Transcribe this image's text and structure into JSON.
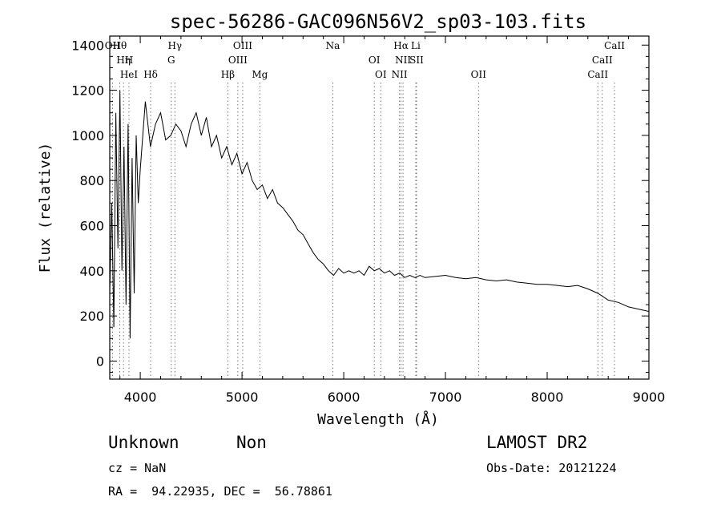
{
  "chart_data": {
    "type": "line",
    "title": "spec-56286-GAC096N56V2_sp03-103.fits",
    "xlabel": "Wavelength (Å)",
    "ylabel": "Flux (relative)",
    "xlim": [
      3700,
      9000
    ],
    "ylim": [
      -80,
      1440
    ],
    "xticks": [
      4000,
      5000,
      6000,
      7000,
      8000,
      9000
    ],
    "yticks": [
      0,
      200,
      400,
      600,
      800,
      1000,
      1200,
      1400
    ],
    "grid": false,
    "legend": "none",
    "series": [
      {
        "x": [
          3700,
          3720,
          3740,
          3760,
          3780,
          3800,
          3820,
          3840,
          3860,
          3880,
          3900,
          3920,
          3940,
          3960,
          3980,
          4000,
          4050,
          4100,
          4150,
          4200,
          4250,
          4300,
          4350,
          4400,
          4450,
          4500,
          4550,
          4600,
          4650,
          4700,
          4750,
          4800,
          4850,
          4900,
          4950,
          5000,
          5050,
          5100,
          5150,
          5200,
          5250,
          5300,
          5350,
          5400,
          5450,
          5500,
          5550,
          5600,
          5650,
          5700,
          5750,
          5800,
          5850,
          5900,
          5950,
          6000,
          6050,
          6100,
          6150,
          6200,
          6250,
          6300,
          6350,
          6400,
          6450,
          6500,
          6550,
          6600,
          6650,
          6700,
          6750,
          6800,
          6900,
          7000,
          7100,
          7200,
          7300,
          7400,
          7500,
          7600,
          7700,
          7800,
          7900,
          8000,
          8100,
          8200,
          8300,
          8400,
          8500,
          8600,
          8700,
          8800,
          8900,
          9000
        ],
        "y": [
          300,
          700,
          150,
          1100,
          500,
          1200,
          400,
          950,
          250,
          1050,
          100,
          900,
          300,
          1000,
          700,
          850,
          1150,
          950,
          1050,
          1100,
          980,
          1000,
          1050,
          1020,
          950,
          1050,
          1100,
          1000,
          1080,
          950,
          1000,
          900,
          950,
          870,
          920,
          830,
          880,
          800,
          760,
          780,
          720,
          760,
          700,
          680,
          650,
          620,
          580,
          560,
          520,
          480,
          450,
          430,
          400,
          380,
          410,
          390,
          400,
          390,
          400,
          380,
          420,
          400,
          410,
          390,
          400,
          380,
          390,
          370,
          380,
          370,
          380,
          370,
          375,
          380,
          370,
          365,
          370,
          360,
          355,
          360,
          350,
          345,
          340,
          340,
          335,
          330,
          335,
          320,
          300,
          270,
          260,
          240,
          230,
          220
        ]
      }
    ],
    "line_markers": [
      {
        "label": "Hθ",
        "x": 3798
      },
      {
        "label": "H",
        "x": 3889
      },
      {
        "label": "HeI",
        "x": 3889
      },
      {
        "label": "OII",
        "x": 3727
      },
      {
        "label": "Hη",
        "x": 3835
      },
      {
        "label": "Hδ",
        "x": 4102
      },
      {
        "label": "Hγ",
        "x": 4340
      },
      {
        "label": "G",
        "x": 4305
      },
      {
        "label": "Hβ",
        "x": 4861
      },
      {
        "label": "OIII",
        "x": 5007
      },
      {
        "label": "OIII",
        "x": 4959
      },
      {
        "label": "Mg",
        "x": 5175
      },
      {
        "label": "Na",
        "x": 5893
      },
      {
        "label": "OI",
        "x": 6300
      },
      {
        "label": "OI",
        "x": 6364
      },
      {
        "label": "Hα",
        "x": 6563
      },
      {
        "label": "SII",
        "x": 6716
      },
      {
        "label": "NII",
        "x": 6548
      },
      {
        "label": "Li",
        "x": 6708
      },
      {
        "label": "NII",
        "x": 6583
      },
      {
        "label": "OII",
        "x": 7325
      },
      {
        "label": "CaII",
        "x": 8662
      },
      {
        "label": "CaII",
        "x": 8542
      },
      {
        "label": "CaII",
        "x": 8498
      }
    ]
  },
  "footer": {
    "class_label": "Unknown",
    "subclass_label": "Non",
    "survey": "LAMOST DR2",
    "cz": "cz = NaN",
    "obs_date": "Obs-Date: 20121224",
    "coords": "RA =  94.22935, DEC =  56.78861"
  }
}
